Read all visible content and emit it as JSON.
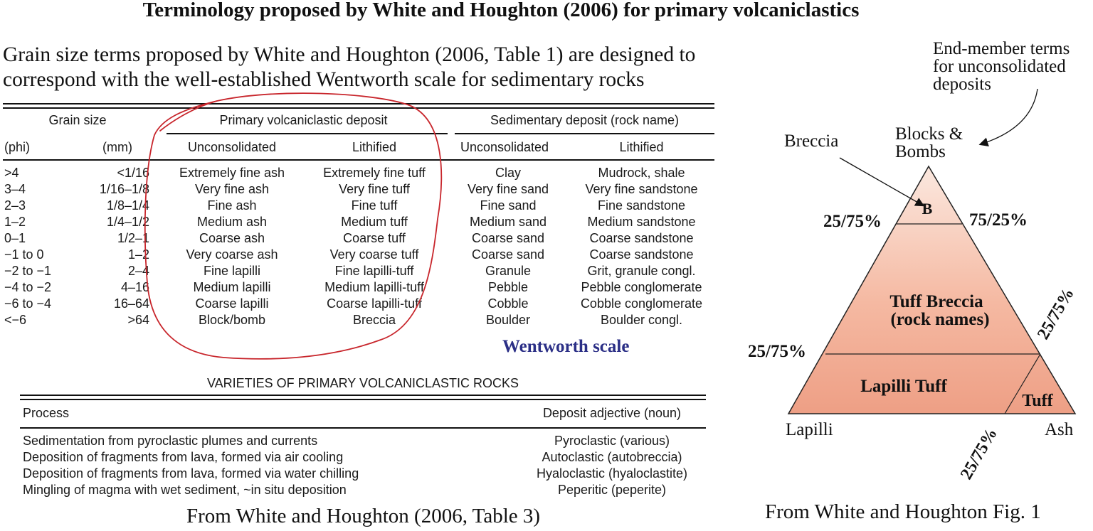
{
  "title": "Terminology proposed by White and Houghton (2006) for primary volcaniclastics",
  "intro": {
    "line1": "Grain size terms proposed by White and Houghton (2006, Table 1) are designed to",
    "line2": "correspond with the well-established Wentworth scale for sedimentary rocks"
  },
  "grain_table": {
    "group_headers": {
      "grain_size": "Grain size",
      "primary": "Primary volcaniclastic deposit",
      "sedimentary": "Sedimentary deposit (rock name)"
    },
    "sub_headers": [
      "(phi)",
      "(mm)",
      "Unconsolidated",
      "Lithified",
      "Unconsolidated",
      "Lithified"
    ],
    "rows": [
      [
        ">4",
        "<1/16",
        "Extremely fine ash",
        "Extremely fine tuff",
        "Clay",
        "Mudrock, shale"
      ],
      [
        "3–4",
        "1/16–1/8",
        "Very fine ash",
        "Very fine tuff",
        "Very fine sand",
        "Very fine sandstone"
      ],
      [
        "2–3",
        "1/8–1/4",
        "Fine ash",
        "Fine tuff",
        "Fine sand",
        "Fine sandstone"
      ],
      [
        "1–2",
        "1/4–1/2",
        "Medium ash",
        "Medium tuff",
        "Medium sand",
        "Medium sandstone"
      ],
      [
        "0–1",
        "1/2–1",
        "Coarse ash",
        "Coarse tuff",
        "Coarse sand",
        "Coarse sandstone"
      ],
      [
        "−1 to 0",
        "1–2",
        "Very coarse ash",
        "Very coarse tuff",
        "Coarse sand",
        "Coarse sandstone"
      ],
      [
        "−2 to −1",
        "2–4",
        "Fine lapilli",
        "Fine lapilli-tuff",
        "Granule",
        "Grit, granule congl."
      ],
      [
        "−4 to −2",
        "4–16",
        "Medium lapilli",
        "Medium lapilli-tuff",
        "Pebble",
        "Pebble conglomerate"
      ],
      [
        "−6 to −4",
        "16–64",
        "Coarse lapilli",
        "Coarse lapilli-tuff",
        "Cobble",
        "Cobble conglomerate"
      ],
      [
        "<−6",
        ">64",
        "Block/bomb",
        "Breccia",
        "Boulder",
        "Boulder congl."
      ]
    ]
  },
  "wentworth_label": "Wentworth scale",
  "varieties_table": {
    "title": "VARIETIES OF PRIMARY VOLCANICLASTIC ROCKS",
    "headers": [
      "Process",
      "Deposit adjective (noun)"
    ],
    "rows": [
      [
        "Sedimentation from pyroclastic plumes and currents",
        "Pyroclastic (various)"
      ],
      [
        "Deposition of fragments from lava, formed via air cooling",
        "Autoclastic (autobreccia)"
      ],
      [
        "Deposition of fragments from lava, formed via water chilling",
        "Hyaloclastic (hyaloclastite)"
      ],
      [
        "Mingling of magma with wet sediment, ~in situ deposition",
        "Peperitic (peperite)"
      ]
    ]
  },
  "caption_left": "From White and Houghton (2006, Table 3)",
  "triangle": {
    "end_member_note": [
      "End-member terms",
      "for unconsolidated",
      "deposits"
    ],
    "breccia_label": "Breccia",
    "apex_label": [
      "Blocks &",
      "Bombs"
    ],
    "b_label": "B",
    "tuff_breccia": [
      "Tuff Breccia",
      "(rock names)"
    ],
    "lapilli_tuff": "Lapilli Tuff",
    "tuff": "Tuff",
    "lapilli": "Lapilli",
    "ash": "Ash",
    "ratio_upper_left": "25/75%",
    "ratio_upper_right": "75/25%",
    "ratio_right_side": "25/75%",
    "ratio_mid_left": "25/75%",
    "ratio_bottom": "25/75%",
    "colors": {
      "light": "#fbe8df",
      "mid": "#f5b9a2",
      "dark": "#ee9f85"
    }
  },
  "caption_right": "From White and Houghton Fig. 1"
}
